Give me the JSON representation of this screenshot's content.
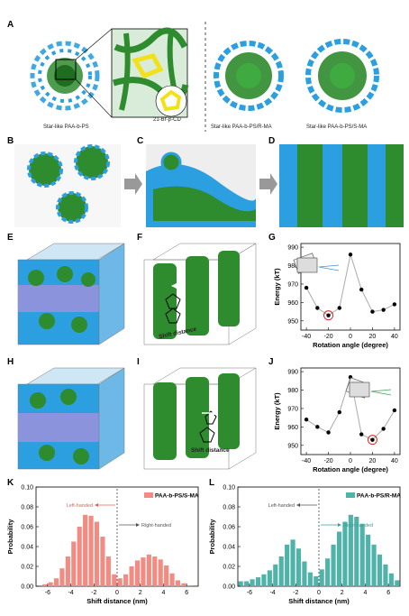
{
  "panel_labels": [
    "A",
    "B",
    "C",
    "D",
    "E",
    "F",
    "G",
    "H",
    "I",
    "J",
    "K",
    "L"
  ],
  "panel_a": {
    "cap_left": "Star-like PAA-b-PS",
    "cap_inset": "21-Br-β-CD",
    "cap_mid": "Star-like PAA-b-PS/R-MA",
    "cap_right": "Star-like PAA-b-PS/S-MA"
  },
  "shift_label_f": "Shift distance",
  "shift_label_i": "Shift distance",
  "colors": {
    "paa_blue": "#2b9fe0",
    "ps_green": "#2e8b2e",
    "cd_yellow": "#f2e11a",
    "hist_red": "#f28b82",
    "hist_teal": "#4fb3a9",
    "marker": "#d22"
  },
  "chart_data": [
    {
      "id": "G",
      "type": "line",
      "xlabel": "Rotation angle (degree)",
      "ylabel": "Energy (kT)",
      "x": [
        -40,
        -30,
        -20,
        -10,
        0,
        10,
        20,
        30,
        40
      ],
      "y": [
        968,
        957,
        953,
        957,
        986,
        967,
        955,
        956,
        959
      ],
      "highlight_x": -20,
      "xlim": [
        -45,
        45
      ],
      "ylim": [
        945,
        992
      ],
      "xticks": [
        "-40",
        "-20",
        "0",
        "20",
        "40"
      ],
      "yticks": [
        "950",
        "960",
        "970",
        "980",
        "990"
      ]
    },
    {
      "id": "J",
      "type": "line",
      "xlabel": "Rotation angle (degree)",
      "ylabel": "Energy (kT)",
      "x": [
        -40,
        -30,
        -20,
        -10,
        0,
        10,
        20,
        30,
        40
      ],
      "y": [
        964,
        960,
        957,
        968,
        987,
        956,
        953,
        959,
        969
      ],
      "highlight_x": 20,
      "xlim": [
        -45,
        45
      ],
      "ylim": [
        945,
        992
      ],
      "xticks": [
        "-40",
        "-20",
        "0",
        "20",
        "40"
      ],
      "yticks": [
        "950",
        "960",
        "970",
        "980",
        "990"
      ]
    },
    {
      "id": "K",
      "type": "bar",
      "legend": "PAA-b-PS/S-MA",
      "xlabel": "Shift distance (nm)",
      "ylabel": "Probability",
      "x": [
        -6.25,
        -5.75,
        -5.25,
        -4.75,
        -4.25,
        -3.75,
        -3.25,
        -2.75,
        -2.25,
        -1.75,
        -1.25,
        -0.75,
        -0.25,
        0.25,
        0.75,
        1.25,
        1.75,
        2.25,
        2.75,
        3.25,
        3.75,
        4.25,
        4.75,
        5.25,
        5.75,
        6.25
      ],
      "values": [
        0.002,
        0.004,
        0.008,
        0.018,
        0.03,
        0.045,
        0.06,
        0.072,
        0.071,
        0.065,
        0.05,
        0.03,
        0.012,
        0.008,
        0.012,
        0.02,
        0.026,
        0.029,
        0.032,
        0.03,
        0.027,
        0.021,
        0.013,
        0.006,
        0.003,
        0.001
      ],
      "xlim": [
        -7,
        7
      ],
      "ylim": [
        0,
        0.1
      ],
      "xticks": [
        "-6",
        "-4",
        "-2",
        "0",
        "2",
        "4",
        "6"
      ],
      "yticks": [
        "0.00",
        "0.02",
        "0.04",
        "0.06",
        "0.08",
        "0.10"
      ],
      "annot_left": "Left-handed",
      "annot_right": "Right-handed"
    },
    {
      "id": "L",
      "type": "bar",
      "legend": "PAA-b-PS/R-MA",
      "xlabel": "Shift distance (nm)",
      "ylabel": "Probability",
      "x": [
        -6.75,
        -6.25,
        -5.75,
        -5.25,
        -4.75,
        -4.25,
        -3.75,
        -3.25,
        -2.75,
        -2.25,
        -1.75,
        -1.25,
        -0.75,
        -0.25,
        0.25,
        0.75,
        1.25,
        1.75,
        2.25,
        2.75,
        3.25,
        3.75,
        4.25,
        4.75,
        5.25,
        5.75,
        6.25,
        6.75
      ],
      "values": [
        0.005,
        0.005,
        0.007,
        0.009,
        0.012,
        0.016,
        0.022,
        0.03,
        0.042,
        0.047,
        0.038,
        0.025,
        0.014,
        0.01,
        0.017,
        0.028,
        0.042,
        0.055,
        0.065,
        0.072,
        0.07,
        0.063,
        0.052,
        0.042,
        0.032,
        0.022,
        0.013,
        0.006
      ],
      "xlim": [
        -7,
        7
      ],
      "ylim": [
        0,
        0.1
      ],
      "xticks": [
        "-6",
        "-4",
        "-2",
        "0",
        "2",
        "4",
        "6"
      ],
      "yticks": [
        "0.00",
        "0.02",
        "0.04",
        "0.06",
        "0.08",
        "0.10"
      ],
      "annot_left": "Left-handed",
      "annot_right": "Right-handed"
    }
  ]
}
